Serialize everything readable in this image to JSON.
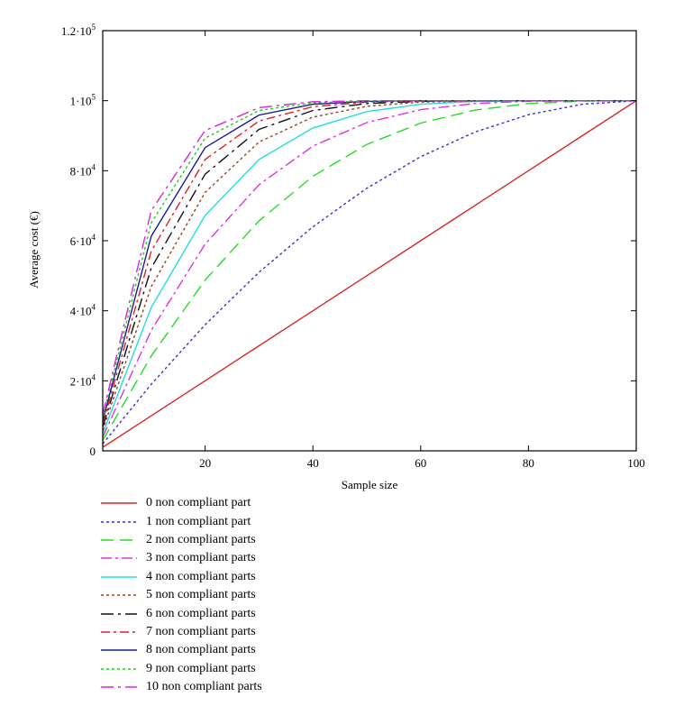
{
  "chart_data": {
    "type": "line",
    "xlabel": "Sample size",
    "ylabel": "Average cost (€)",
    "xlim": [
      1,
      100
    ],
    "ylim": [
      0,
      120000
    ],
    "x_ticks": [
      20,
      40,
      60,
      80,
      100
    ],
    "y_ticks": [
      {
        "value": 0,
        "mant": "0",
        "exp": ""
      },
      {
        "value": 20000,
        "mant": "2·10",
        "exp": "4"
      },
      {
        "value": 40000,
        "mant": "4·10",
        "exp": "4"
      },
      {
        "value": 60000,
        "mant": "6·10",
        "exp": "4"
      },
      {
        "value": 80000,
        "mant": "8·10",
        "exp": "4"
      },
      {
        "value": 100000,
        "mant": "1·10",
        "exp": "5"
      },
      {
        "value": 120000,
        "mant": "1.2·10",
        "exp": "5"
      }
    ],
    "legend_position": "bottom",
    "x": [
      1,
      10,
      20,
      30,
      40,
      50,
      60,
      70,
      80,
      90,
      100
    ],
    "series": [
      {
        "name": "0 non compliant part",
        "color": "#d62728",
        "dash": "",
        "values": [
          1000,
          10000,
          20000,
          30000,
          40000,
          50000,
          60000,
          70000,
          80000,
          90000,
          100000
        ]
      },
      {
        "name": "1 non compliant part",
        "color": "#3333cc",
        "dash": "3,3",
        "values": [
          1990,
          19000,
          36000,
          51000,
          64000,
          75000,
          84000,
          91000,
          96000,
          99000,
          100000
        ]
      },
      {
        "name": "2 non compliant parts",
        "color": "#22dd22",
        "dash": "14,7",
        "values": [
          2980,
          27100,
          48760,
          65700,
          78400,
          87500,
          93600,
          97300,
          99200,
          99900,
          100000
        ]
      },
      {
        "name": "3 non compliant parts",
        "color": "#dd33dd",
        "dash": "12,4,3,4",
        "values": [
          3970,
          34390,
          59040,
          75990,
          87040,
          93750,
          97440,
          99190,
          99840,
          99990,
          100000
        ]
      },
      {
        "name": "4 non compliant parts",
        "color": "#22dddd",
        "dash": "",
        "values": [
          4950,
          40950,
          67230,
          83190,
          92220,
          96870,
          98980,
          99760,
          99970,
          100000,
          100000
        ]
      },
      {
        "name": "5 non compliant parts",
        "color": "#994422",
        "dash": "3,3",
        "values": [
          5900,
          46900,
          73800,
          88200,
          95300,
          98400,
          99600,
          99900,
          100000,
          100000,
          100000
        ]
      },
      {
        "name": "6 non compliant parts",
        "color": "#111111",
        "dash": "14,5,3,5",
        "values": [
          6800,
          52200,
          79000,
          91800,
          97200,
          99200,
          99800,
          100000,
          100000,
          100000,
          100000
        ]
      },
      {
        "name": "7 non compliant parts",
        "color": "#dd2222",
        "dash": "10,4,3,4",
        "values": [
          7700,
          57000,
          83200,
          94200,
          98300,
          99600,
          99900,
          100000,
          100000,
          100000,
          100000
        ]
      },
      {
        "name": "8 non compliant parts",
        "color": "#1a1a99",
        "dash": "",
        "values": [
          8600,
          61300,
          86600,
          95900,
          99000,
          99800,
          100000,
          100000,
          100000,
          100000,
          100000
        ]
      },
      {
        "name": "9 non compliant parts",
        "color": "#22cc22",
        "dash": "3,3",
        "values": [
          9500,
          65100,
          89300,
          97200,
          99400,
          99900,
          100000,
          100000,
          100000,
          100000,
          100000
        ]
      },
      {
        "name": "10 non compliant parts",
        "color": "#dd22dd",
        "dash": "14,5,3,5",
        "values": [
          10400,
          68600,
          91500,
          98000,
          99700,
          100000,
          100000,
          100000,
          100000,
          100000,
          100000
        ]
      }
    ]
  }
}
